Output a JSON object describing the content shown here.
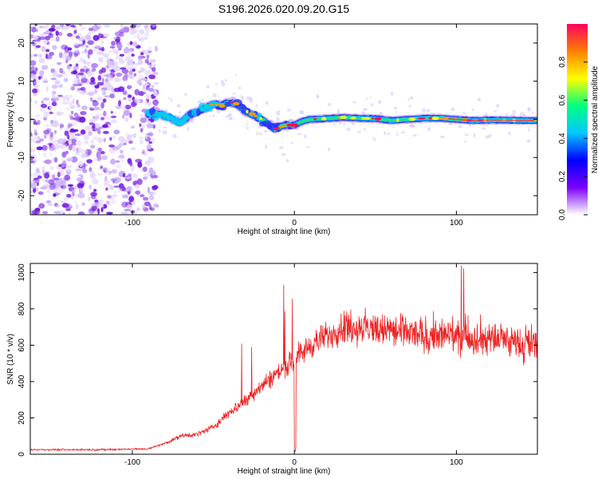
{
  "title": "S196.2026.020.09.20.G15",
  "chart_data": [
    {
      "type": "heatmap",
      "name": "spectrogram",
      "xlabel": "Height of straight line (km)",
      "ylabel": "Frequency (Hz)",
      "xlim": [
        -163,
        150
      ],
      "ylim": [
        -25,
        25
      ],
      "xticks": [
        -100,
        0,
        100
      ],
      "yticks": [
        -20,
        -10,
        0,
        10,
        20
      ],
      "colorbar": {
        "label": "Normalized spectral amplitude",
        "range": [
          0,
          1
        ],
        "ticks": [
          0.0,
          0.2,
          0.4,
          0.6,
          0.8
        ],
        "colors": [
          "#ffffff",
          "#7a00ff",
          "#0000ff",
          "#00c8ff",
          "#00ff80",
          "#ffff00",
          "#ff8000",
          "#ff0060"
        ]
      },
      "ridge": {
        "x": [
          -90,
          -85,
          -80,
          -75,
          -70,
          -65,
          -60,
          -55,
          -50,
          -45,
          -40,
          -35,
          -30,
          -25,
          -20,
          -15,
          -12,
          -10,
          -5,
          0,
          5,
          10,
          20,
          30,
          40,
          50,
          60,
          70,
          80,
          90,
          100,
          110,
          120,
          130,
          140,
          150
        ],
        "y": [
          1.5,
          1.5,
          1,
          0,
          -1,
          1,
          2,
          3,
          4,
          3.5,
          4.5,
          4,
          2,
          1,
          0,
          -1.5,
          -2.5,
          -2,
          -1.5,
          -1.5,
          -0.5,
          0,
          0.2,
          0.5,
          0.3,
          0.2,
          -0.3,
          0,
          0.3,
          0.3,
          0,
          -0.3,
          -0.2,
          -0.2,
          -0.3,
          -0.3
        ]
      }
    },
    {
      "type": "line",
      "name": "snr",
      "xlabel": "Height of straight line (km)",
      "ylabel": "SNR (10 * v/v)",
      "xlim": [
        -163,
        150
      ],
      "ylim": [
        0,
        1050
      ],
      "xticks": [
        -100,
        0,
        100
      ],
      "yticks": [
        0,
        200,
        400,
        600,
        800,
        1000
      ],
      "color": "#ee2222",
      "trend": {
        "x": [
          -163,
          -120,
          -90,
          -80,
          -70,
          -60,
          -50,
          -40,
          -30,
          -20,
          -10,
          0,
          10,
          20,
          30,
          40,
          60,
          80,
          100,
          120,
          150
        ],
        "y": [
          25,
          25,
          30,
          60,
          100,
          110,
          150,
          230,
          300,
          380,
          450,
          520,
          600,
          650,
          700,
          700,
          680,
          650,
          650,
          640,
          600
        ]
      }
    }
  ]
}
